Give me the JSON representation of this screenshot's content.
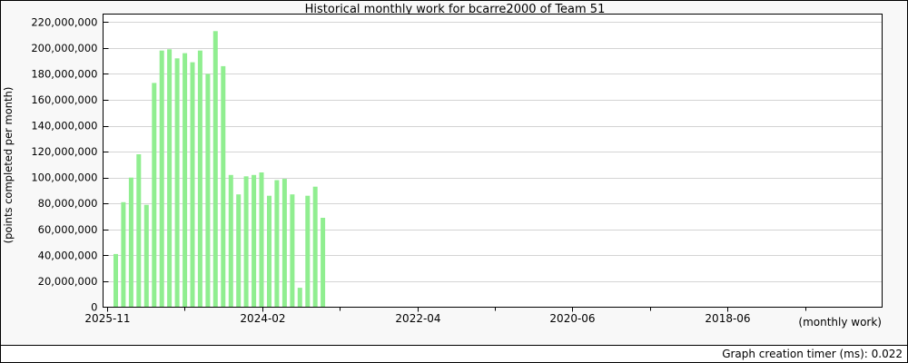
{
  "page": {
    "footer_text": "Graph creation timer (ms): 0.022"
  },
  "chart_data": {
    "type": "bar",
    "title": "Historical monthly work for bcarre2000 of Team 51",
    "ylabel": "(points completed per month)",
    "xlabel": "(monthly work)",
    "ylim": [
      0,
      220000000
    ],
    "y_tick_step": 20000000,
    "grid": "horizontal",
    "bar_color": "#90ee90",
    "y_tick_labels": [
      "0",
      "20,000,000",
      "40,000,000",
      "60,000,000",
      "80,000,000",
      "100,000,000",
      "120,000,000",
      "140,000,000",
      "160,000,000",
      "180,000,000",
      "200,000,000",
      "220,000,000"
    ],
    "x_tick_labels": [
      "2025-11",
      "2024-02",
      "2022-04",
      "2020-06",
      "2018-06"
    ],
    "x_axis_note": "time runs newest (left) to oldest (right), one bar per month",
    "values": [
      41000000,
      81000000,
      100000000,
      118000000,
      79000000,
      173000000,
      198000000,
      199000000,
      192000000,
      196000000,
      189000000,
      198000000,
      180000000,
      213000000,
      186000000,
      102000000,
      87000000,
      101000000,
      102000000,
      104000000,
      86000000,
      98000000,
      99000000,
      87000000,
      15000000,
      86000000,
      93000000,
      69000000
    ]
  }
}
